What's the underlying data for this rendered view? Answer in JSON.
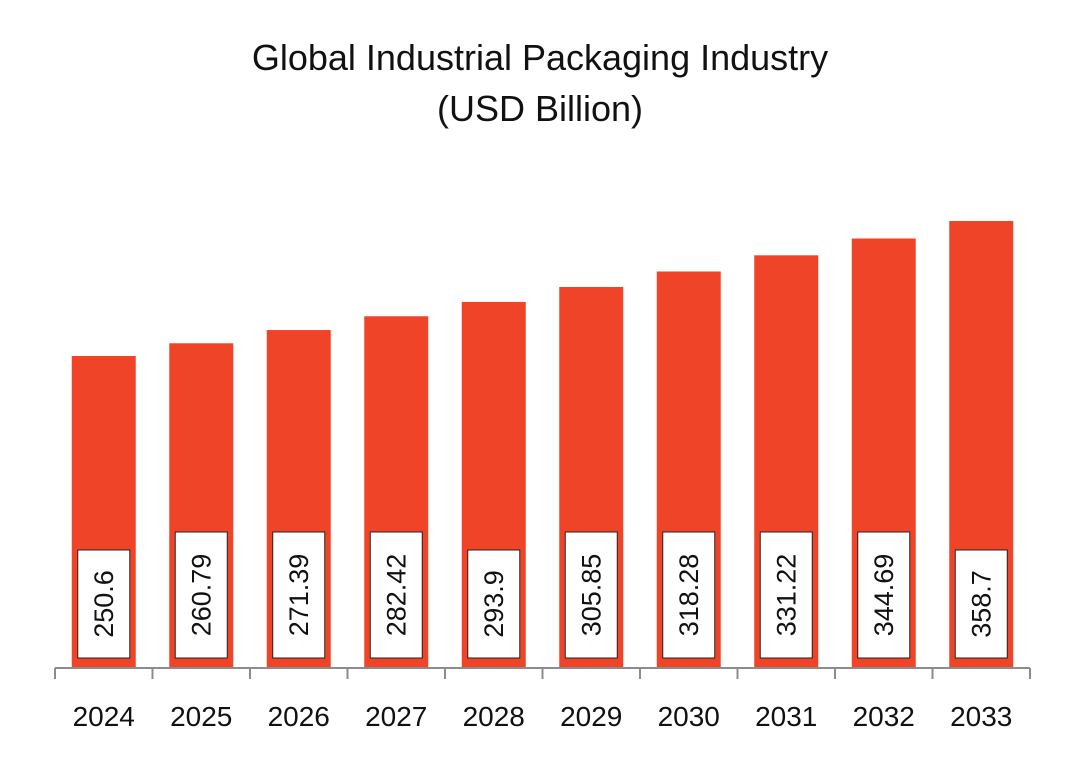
{
  "chart_data": {
    "type": "bar",
    "title": "Global Industrial Packaging Industry",
    "subtitle": "(USD Billion)",
    "xlabel": "",
    "ylabel": "",
    "categories": [
      "2024",
      "2025",
      "2026",
      "2027",
      "2028",
      "2029",
      "2030",
      "2031",
      "2032",
      "2033"
    ],
    "values": [
      250.6,
      260.79,
      271.39,
      282.42,
      293.9,
      305.85,
      318.28,
      331.22,
      344.69,
      358.7
    ],
    "value_labels": [
      "250.6",
      "260.79",
      "271.39",
      "282.42",
      "293.9",
      "305.85",
      "318.28",
      "331.22",
      "344.69",
      "358.7"
    ],
    "ylim": [
      0,
      400
    ],
    "grid": false,
    "legend": "none",
    "bar_color": "#F04428",
    "label_box_color": "#FFFFFF",
    "axis_color": "#8C8C8C"
  }
}
